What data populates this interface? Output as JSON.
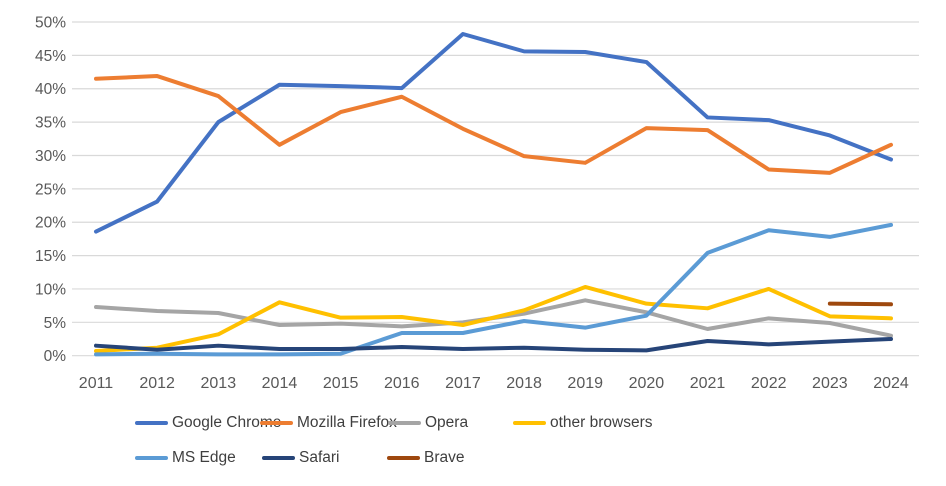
{
  "chart_data": {
    "type": "line",
    "title": "",
    "x_labels": [
      "2011",
      "2012",
      "2013",
      "2014",
      "2015",
      "2016",
      "2017",
      "2018",
      "2019",
      "2020",
      "2021",
      "2022",
      "2023",
      "2024"
    ],
    "y_tick_labels": [
      "0%",
      "5%",
      "10%",
      "15%",
      "20%",
      "25%",
      "30%",
      "35%",
      "40%",
      "45%",
      "50%"
    ],
    "ylim": [
      0,
      50
    ],
    "ytick_step": 5,
    "grid": true,
    "grid_color": "#D9D9D9",
    "axis_text_color": "#595959",
    "legend_position": "bottom",
    "series": [
      {
        "name": "Google Chrome",
        "color": "#4472C4",
        "values": [
          18.6,
          23.1,
          35.0,
          40.6,
          40.4,
          40.1,
          48.2,
          45.6,
          45.5,
          44.0,
          35.7,
          35.3,
          33.0,
          29.4
        ]
      },
      {
        "name": "Mozilla Firefox",
        "color": "#ED7D31",
        "values": [
          41.5,
          41.9,
          38.9,
          31.6,
          36.5,
          38.8,
          34.0,
          29.9,
          28.9,
          34.1,
          33.8,
          27.9,
          27.4,
          31.6
        ]
      },
      {
        "name": "Opera",
        "color": "#A5A5A5",
        "values": [
          7.3,
          6.7,
          6.4,
          4.6,
          4.8,
          4.4,
          5.0,
          6.3,
          8.3,
          6.5,
          4.0,
          5.6,
          4.9,
          3.0
        ]
      },
      {
        "name": "other browsers",
        "color": "#FFC000",
        "values": [
          0.7,
          1.2,
          3.2,
          8.0,
          5.7,
          5.8,
          4.6,
          6.8,
          10.3,
          7.8,
          7.1,
          10.0,
          5.9,
          5.6
        ]
      },
      {
        "name": "MS Edge",
        "color": "#5B9BD5",
        "values": [
          0.2,
          0.3,
          0.2,
          0.2,
          0.3,
          3.4,
          3.4,
          5.2,
          4.2,
          6.0,
          15.4,
          18.8,
          17.8,
          19.6
        ]
      },
      {
        "name": "Safari",
        "color": "#264478",
        "values": [
          1.5,
          0.9,
          1.5,
          1.0,
          1.0,
          1.3,
          1.0,
          1.2,
          0.9,
          0.8,
          2.2,
          1.7,
          2.1,
          2.5
        ]
      },
      {
        "name": "Brave",
        "color": "#9E480E",
        "values": [
          null,
          null,
          null,
          null,
          null,
          null,
          null,
          null,
          null,
          null,
          null,
          null,
          7.8,
          7.7
        ]
      }
    ]
  }
}
